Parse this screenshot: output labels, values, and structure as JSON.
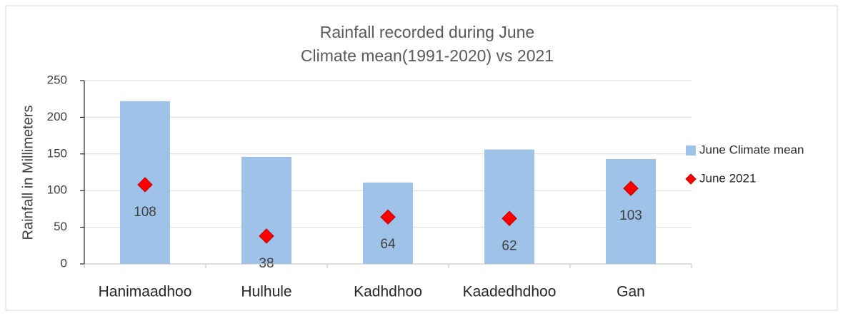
{
  "chart_data": {
    "type": "bar",
    "title": "Rainfall recorded during June",
    "subtitle": "Climate mean(1991-2020) vs 2021",
    "y_label": "Rainfall in Millimeters",
    "categories": [
      "Hanimaadhoo",
      "Hulhule",
      "Kadhdhoo",
      "Kaadedhdhoo",
      "Gan"
    ],
    "series": [
      {
        "name": "June Climate mean",
        "type": "bar",
        "color": "#9fc2e8",
        "values": [
          222,
          146,
          111,
          156,
          143
        ]
      },
      {
        "name": "June 2021",
        "type": "scatter",
        "color": "#ff0000",
        "values": [
          108,
          38,
          64,
          62,
          103
        ]
      }
    ],
    "ylim": [
      0,
      250
    ],
    "yticks": [
      0,
      50,
      100,
      150,
      200,
      250
    ],
    "grid": true,
    "legend": "right"
  }
}
